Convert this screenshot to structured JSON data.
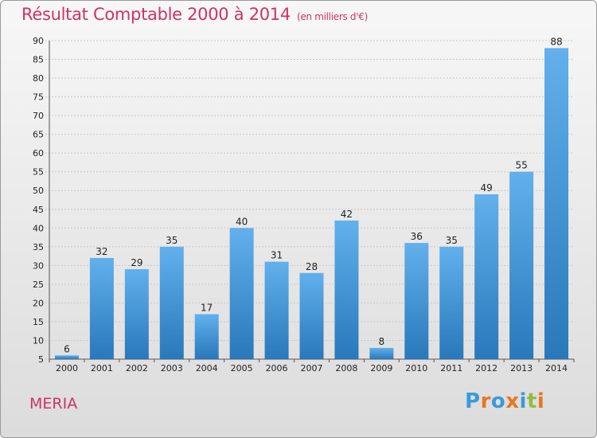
{
  "header": {
    "title": "Résultat Comptable 2000 à 2014",
    "subtitle": "(en milliers d'€)"
  },
  "footer": {
    "commune": "MERIA",
    "brand": "Proxiti"
  },
  "colors": {
    "accent": "#cc3366",
    "bar_light": "#62b0ec",
    "bar_dark": "#2878bb"
  },
  "chart_data": {
    "type": "bar",
    "title": "Résultat Comptable 2000 à 2014",
    "subtitle": "(en milliers d'€)",
    "xlabel": "",
    "ylabel": "",
    "categories": [
      "2000",
      "2001",
      "2002",
      "2003",
      "2004",
      "2005",
      "2006",
      "2007",
      "2008",
      "2009",
      "2010",
      "2011",
      "2012",
      "2013",
      "2014"
    ],
    "values": [
      6,
      32,
      29,
      35,
      17,
      40,
      31,
      28,
      42,
      8,
      36,
      35,
      49,
      55,
      88
    ],
    "ylim": [
      5,
      90
    ],
    "yticks": [
      5,
      10,
      15,
      20,
      25,
      30,
      35,
      40,
      45,
      50,
      55,
      60,
      65,
      70,
      75,
      80,
      85,
      90
    ],
    "grid": true,
    "legend": "none"
  }
}
